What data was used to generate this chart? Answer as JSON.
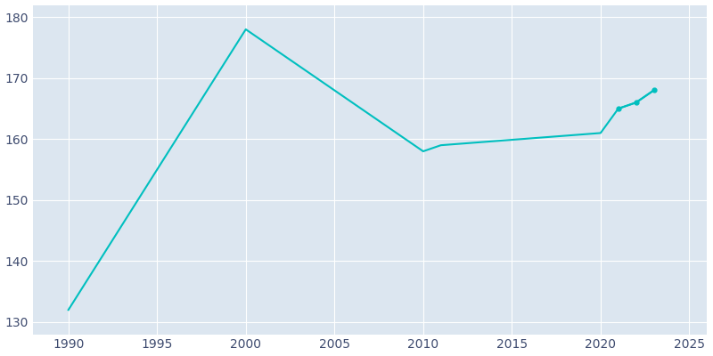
{
  "years": [
    1990,
    2000,
    2010,
    2011,
    2020,
    2021,
    2022,
    2023
  ],
  "population": [
    132,
    178,
    158,
    159,
    161,
    165,
    166,
    168
  ],
  "line_color": "#00BFBF",
  "fig_bg_color": "#ffffff",
  "plot_bg_color": "#dce6f0",
  "grid_color": "#ffffff",
  "tick_color": "#3d4a6e",
  "xlim": [
    1988,
    2026
  ],
  "ylim": [
    128,
    182
  ],
  "xticks": [
    1990,
    1995,
    2000,
    2005,
    2010,
    2015,
    2020,
    2025
  ],
  "yticks": [
    130,
    140,
    150,
    160,
    170,
    180
  ],
  "marker_years": [
    2021,
    2022,
    2023
  ],
  "marker_pop": [
    165,
    166,
    168
  ]
}
